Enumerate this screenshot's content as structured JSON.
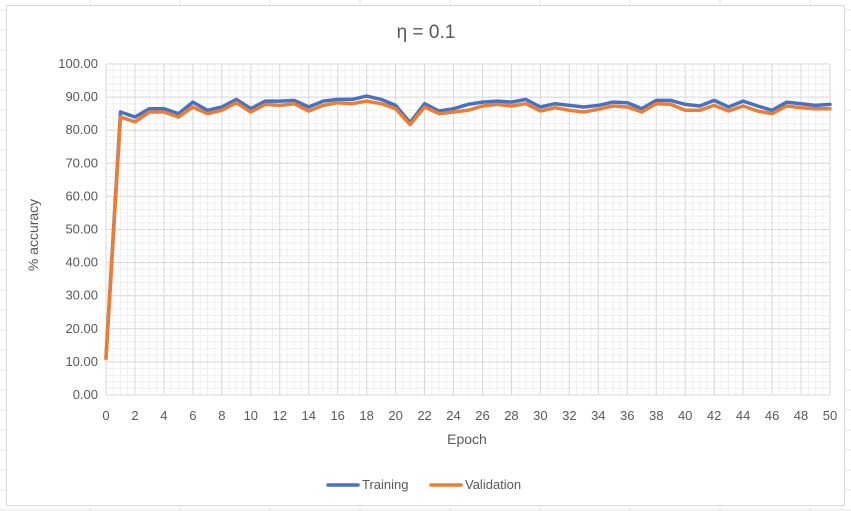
{
  "chart_data": {
    "type": "line",
    "title": "η = 0.1",
    "xlabel": "Epoch",
    "ylabel": "% accuracy",
    "ylim": [
      0,
      100
    ],
    "xlim": [
      0,
      50
    ],
    "y_ticks": [
      "0.00",
      "10.00",
      "20.00",
      "30.00",
      "40.00",
      "50.00",
      "60.00",
      "70.00",
      "80.00",
      "90.00",
      "100.00"
    ],
    "x_ticks": [
      "0",
      "2",
      "4",
      "6",
      "8",
      "10",
      "12",
      "14",
      "16",
      "18",
      "20",
      "22",
      "24",
      "26",
      "28",
      "30",
      "32",
      "34",
      "36",
      "38",
      "40",
      "42",
      "44",
      "46",
      "48",
      "50"
    ],
    "grid": true,
    "legend_position": "bottom",
    "x": [
      0,
      1,
      2,
      3,
      4,
      5,
      6,
      7,
      8,
      9,
      10,
      11,
      12,
      13,
      14,
      15,
      16,
      17,
      18,
      19,
      20,
      21,
      22,
      23,
      24,
      25,
      26,
      27,
      28,
      29,
      30,
      31,
      32,
      33,
      34,
      35,
      36,
      37,
      38,
      39,
      40,
      41,
      42,
      43,
      44,
      45,
      46,
      47,
      48,
      49,
      50
    ],
    "series": [
      {
        "name": "Training",
        "color": "#4472c4",
        "values": [
          11.5,
          85.5,
          84.0,
          86.5,
          86.5,
          85.0,
          88.5,
          86.0,
          87.0,
          89.3,
          86.5,
          88.8,
          88.8,
          89.0,
          87.0,
          88.8,
          89.3,
          89.3,
          90.3,
          89.3,
          87.5,
          82.3,
          88.0,
          85.8,
          86.5,
          87.8,
          88.5,
          88.8,
          88.5,
          89.3,
          87.0,
          88.0,
          87.5,
          87.0,
          87.5,
          88.5,
          88.3,
          86.5,
          89.0,
          89.0,
          87.8,
          87.3,
          89.0,
          87.0,
          88.8,
          87.3,
          86.0,
          88.5,
          88.0,
          87.5,
          87.8
        ]
      },
      {
        "name": "Validation",
        "color": "#ed7d31",
        "values": [
          11.0,
          84.0,
          82.5,
          85.5,
          85.5,
          84.0,
          87.0,
          85.0,
          86.0,
          88.3,
          85.5,
          87.8,
          87.5,
          88.0,
          85.8,
          87.5,
          88.3,
          88.0,
          88.8,
          88.0,
          86.5,
          81.7,
          87.0,
          85.0,
          85.5,
          86.0,
          87.3,
          87.8,
          87.3,
          88.0,
          85.8,
          86.8,
          86.0,
          85.5,
          86.3,
          87.3,
          87.0,
          85.5,
          88.0,
          87.8,
          86.0,
          86.0,
          87.5,
          85.8,
          87.3,
          85.8,
          85.0,
          87.3,
          86.8,
          86.5,
          86.5
        ]
      }
    ]
  }
}
